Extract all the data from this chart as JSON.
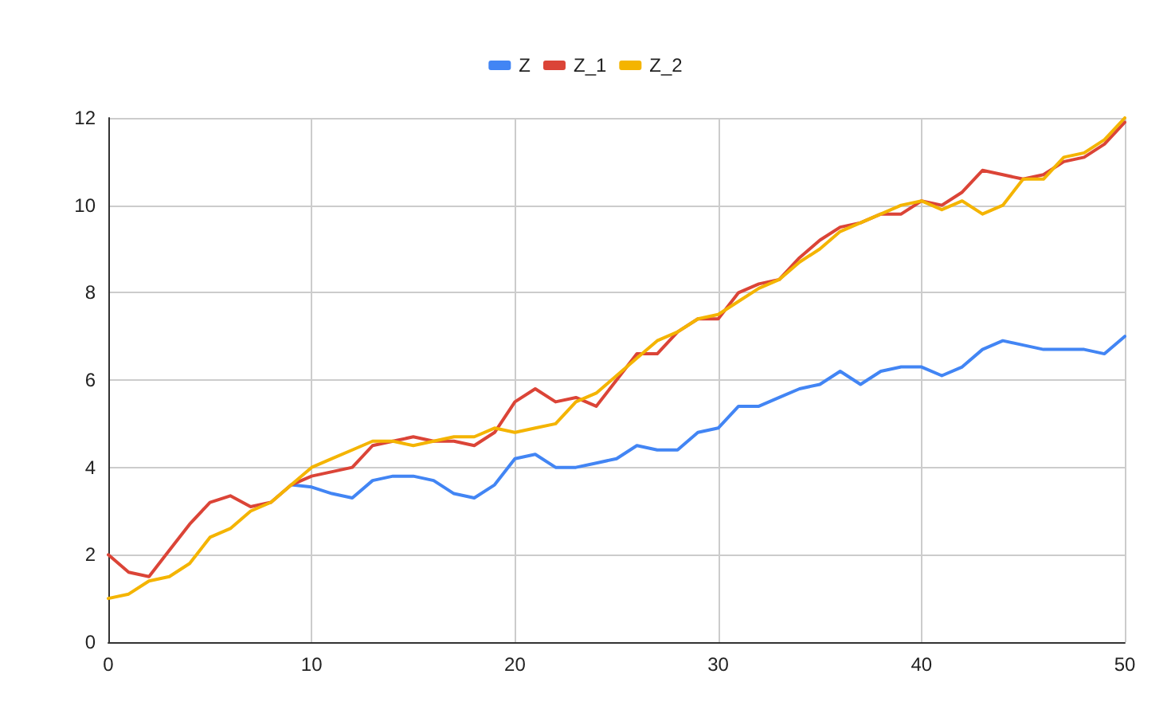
{
  "chart_data": {
    "type": "line",
    "x": [
      0,
      1,
      2,
      3,
      4,
      5,
      6,
      7,
      8,
      9,
      10,
      11,
      12,
      13,
      14,
      15,
      16,
      17,
      18,
      19,
      20,
      21,
      22,
      23,
      24,
      25,
      26,
      27,
      28,
      29,
      30,
      31,
      32,
      33,
      34,
      35,
      36,
      37,
      38,
      39,
      40,
      41,
      42,
      43,
      44,
      45,
      46,
      47,
      48,
      49,
      50
    ],
    "series": [
      {
        "name": "Z",
        "color": "#4285f4",
        "values": [
          null,
          null,
          null,
          null,
          null,
          null,
          null,
          null,
          null,
          3.6,
          3.55,
          3.4,
          3.3,
          3.7,
          3.8,
          3.8,
          3.7,
          3.4,
          3.3,
          3.6,
          4.2,
          4.3,
          4.0,
          4.0,
          4.1,
          4.2,
          4.5,
          4.4,
          4.4,
          4.8,
          4.9,
          5.4,
          5.4,
          5.6,
          5.8,
          5.9,
          6.2,
          5.9,
          6.2,
          6.3,
          6.3,
          6.1,
          6.3,
          6.7,
          6.9,
          6.8,
          6.7,
          6.7,
          6.7,
          6.6,
          7.0
        ]
      },
      {
        "name": "Z_1",
        "color": "#db4437",
        "values": [
          2.0,
          1.6,
          1.5,
          2.1,
          2.7,
          3.2,
          3.35,
          3.1,
          3.2,
          3.6,
          3.8,
          3.9,
          4.0,
          4.5,
          4.6,
          4.7,
          4.6,
          4.6,
          4.5,
          4.8,
          5.5,
          5.8,
          5.5,
          5.6,
          5.4,
          6.0,
          6.6,
          6.6,
          7.1,
          7.4,
          7.4,
          8.0,
          8.2,
          8.3,
          8.8,
          9.2,
          9.5,
          9.6,
          9.8,
          9.8,
          10.1,
          10.0,
          10.3,
          10.8,
          10.7,
          10.6,
          10.7,
          11.0,
          11.1,
          11.4,
          11.9
        ]
      },
      {
        "name": "Z_2",
        "color": "#f4b400",
        "values": [
          1.0,
          1.1,
          1.4,
          1.5,
          1.8,
          2.4,
          2.6,
          3.0,
          3.2,
          3.6,
          4.0,
          4.2,
          4.4,
          4.6,
          4.6,
          4.5,
          4.6,
          4.7,
          4.7,
          4.9,
          4.8,
          4.9,
          5.0,
          5.5,
          5.7,
          6.1,
          6.5,
          6.9,
          7.1,
          7.4,
          7.5,
          7.8,
          8.1,
          8.3,
          8.7,
          9.0,
          9.4,
          9.6,
          9.8,
          10.0,
          10.1,
          9.9,
          10.1,
          9.8,
          10.0,
          10.6,
          10.6,
          11.1,
          11.2,
          11.5,
          12.0
        ]
      }
    ],
    "xlim": [
      0,
      50
    ],
    "xticks": [
      0,
      10,
      20,
      30,
      40,
      50
    ],
    "ylim": [
      0,
      12
    ],
    "yticks": [
      0,
      2,
      4,
      6,
      8,
      10,
      12
    ],
    "grid": true,
    "legend": "top",
    "marker": "none",
    "line_style": "solid"
  }
}
